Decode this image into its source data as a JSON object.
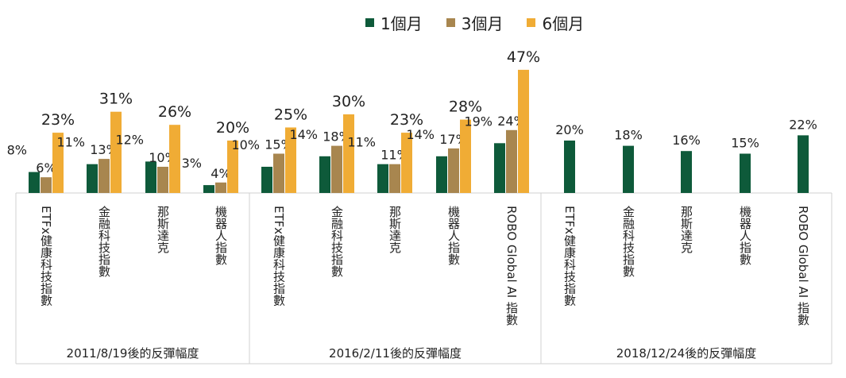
{
  "chart_data": {
    "type": "bar",
    "colors": {
      "1m": "#0e5a3a",
      "3m": "#a8864f",
      "6m": "#f0ac35"
    },
    "series": [
      {
        "key": "1m",
        "name": "1個月"
      },
      {
        "key": "3m",
        "name": "3個月"
      },
      {
        "key": "6m",
        "name": "6個月"
      }
    ],
    "ylim": [
      0,
      50
    ],
    "grid": false,
    "legend_position": "top",
    "groups": [
      {
        "label": "2011/8/19後的反彈幅度",
        "categories": [
          {
            "name": "ETFx健康科技指數",
            "values": [
              8,
              6,
              23
            ]
          },
          {
            "name": "金融科技指數",
            "values": [
              11,
              13,
              31
            ]
          },
          {
            "name": "那斯達克",
            "values": [
              12,
              10,
              26
            ]
          },
          {
            "name": "機器人指數",
            "values": [
              3,
              4,
              20
            ]
          }
        ]
      },
      {
        "label": "2016/2/11後的反彈幅度",
        "categories": [
          {
            "name": "ETFx健康科技指數",
            "values": [
              10,
              15,
              25
            ]
          },
          {
            "name": "金融科技指數",
            "values": [
              14,
              18,
              30
            ]
          },
          {
            "name": "那斯達克",
            "values": [
              11,
              11,
              23
            ]
          },
          {
            "name": "機器人指數",
            "values": [
              14,
              17,
              28
            ]
          },
          {
            "name": "ROBO Global AI 指數",
            "values": [
              19,
              24,
              47
            ]
          }
        ]
      },
      {
        "label": "2018/12/24後的反彈幅度",
        "categories": [
          {
            "name": "ETFx健康科技指數",
            "values": [
              20,
              null,
              null
            ]
          },
          {
            "name": "金融科技指數",
            "values": [
              18,
              null,
              null
            ]
          },
          {
            "name": "那斯達克",
            "values": [
              16,
              null,
              null
            ]
          },
          {
            "name": "機器人指數",
            "values": [
              15,
              null,
              null
            ]
          },
          {
            "name": "ROBO Global AI 指數",
            "values": [
              22,
              null,
              null
            ]
          }
        ]
      }
    ]
  }
}
